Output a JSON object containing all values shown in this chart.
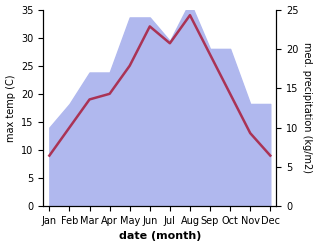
{
  "months": [
    "Jan",
    "Feb",
    "Mar",
    "Apr",
    "May",
    "Jun",
    "Jul",
    "Aug",
    "Sep",
    "Oct",
    "Nov",
    "Dec"
  ],
  "temp": [
    9,
    14,
    19,
    20,
    25,
    32,
    29,
    34,
    27,
    20,
    13,
    9
  ],
  "precip": [
    10,
    13,
    17,
    17,
    24,
    24,
    21,
    26,
    20,
    20,
    13,
    13
  ],
  "temp_color": "#aa3355",
  "precip_color": "#b0b8ee",
  "left_ylim": [
    0,
    35
  ],
  "right_ylim": [
    0,
    25
  ],
  "left_yticks": [
    0,
    5,
    10,
    15,
    20,
    25,
    30,
    35
  ],
  "right_yticks": [
    0,
    5,
    10,
    15,
    20,
    25
  ],
  "left_ylabel": "max temp (C)",
  "right_ylabel": "med. precipitation (kg/m2)",
  "xlabel": "date (month)",
  "background_color": "#ffffff",
  "line_width": 1.8,
  "scale_factor": 1.4
}
